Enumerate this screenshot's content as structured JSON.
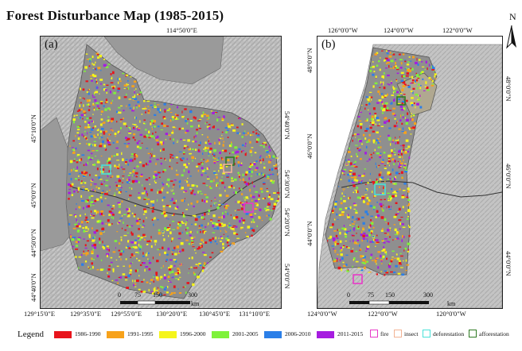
{
  "title": "Forest Disturbance Map (1985-2015)",
  "north_label": "N",
  "panel_a": {
    "label": "(a)",
    "top_coords": [
      "114°50'0\"E"
    ],
    "bottom_coords": [
      "129°15'0\"E",
      "129°35'0\"E",
      "129°55'0\"E",
      "130°20'0\"E",
      "130°45'0\"E",
      "131°10'0\"E"
    ],
    "left_coords": [
      "45°10'0\"N",
      "45°0'0\"N",
      "44°50'0\"N",
      "44°40'0\"N"
    ],
    "right_coords": [
      "54°40'0\"N",
      "54°30'0\"N",
      "54°20'0\"N",
      "54°0'0\"N"
    ],
    "scale_ticks": [
      "0",
      "75",
      "150",
      "300"
    ],
    "scale_unit": "km"
  },
  "panel_b": {
    "label": "(b)",
    "top_coords": [
      "126°0'0\"W",
      "124°0'0\"W",
      "122°0'0\"W"
    ],
    "bottom_coords": [
      "124°0'0\"W",
      "122°0'0\"W",
      "120°0'0\"W"
    ],
    "left_coords": [
      "48°0'0\"N",
      "46°0'0\"N",
      "44°0'0\"N"
    ],
    "right_coords": [
      "48°0'0\"N",
      "46°0'0\"N",
      "44°0'0\"N"
    ],
    "scale_ticks": [
      "0",
      "75",
      "150",
      "300"
    ],
    "scale_unit": "km"
  },
  "legend": {
    "title": "Legend",
    "periods": [
      {
        "label": "1986-1990",
        "color": "#e8141c"
      },
      {
        "label": "1991-1995",
        "color": "#f7a21b"
      },
      {
        "label": "1996-2000",
        "color": "#f5f51a"
      },
      {
        "label": "2001-2005",
        "color": "#7ff23a"
      },
      {
        "label": "2006-2010",
        "color": "#2b7fe8"
      },
      {
        "label": "2011-2015",
        "color": "#a61ce0"
      }
    ],
    "agents": [
      {
        "label": "fire",
        "color": "#e83ac8"
      },
      {
        "label": "insect",
        "color": "#f2b394"
      },
      {
        "label": "deforestation",
        "color": "#49e2d8"
      },
      {
        "label": "afforestation",
        "color": "#2e7a22"
      }
    ]
  }
}
